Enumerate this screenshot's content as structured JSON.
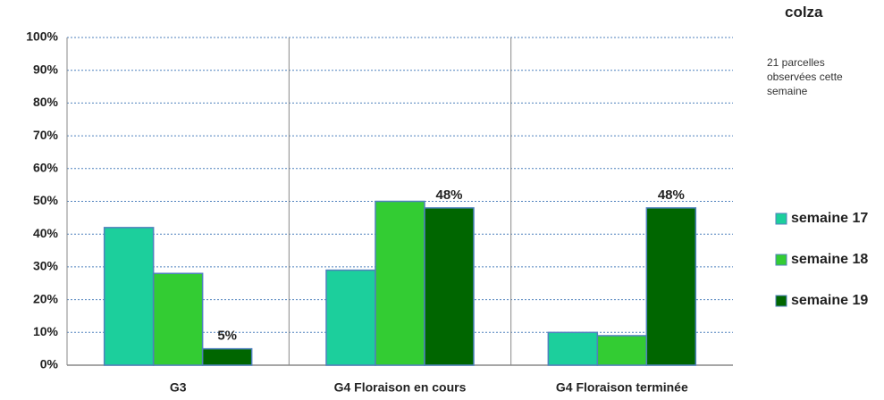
{
  "chart_data": {
    "type": "bar",
    "title": "colza",
    "subtitle": "21 parcelles observées cette semaine",
    "categories": [
      "G3",
      "G4 Floraison en cours",
      "G4 Floraison terminée"
    ],
    "series": [
      {
        "name": "semaine 17",
        "color": "#1ccf9c",
        "values": [
          42,
          29,
          10
        ]
      },
      {
        "name": "semaine 18",
        "color": "#33cc33",
        "values": [
          28,
          50,
          9
        ]
      },
      {
        "name": "semaine 19",
        "color": "#006600",
        "values": [
          5,
          48,
          48
        ],
        "value_labels": [
          "5%",
          "48%",
          "48%"
        ]
      }
    ],
    "ylim": [
      0,
      100
    ],
    "yticks": [
      {
        "value": 0,
        "label": "0%"
      },
      {
        "value": 10,
        "label": "10%"
      },
      {
        "value": 20,
        "label": "20%"
      },
      {
        "value": 30,
        "label": "30%"
      },
      {
        "value": 40,
        "label": "40%"
      },
      {
        "value": 50,
        "label": "50%"
      },
      {
        "value": 60,
        "label": "60%"
      },
      {
        "value": 70,
        "label": "70%"
      },
      {
        "value": 80,
        "label": "80%"
      },
      {
        "value": 90,
        "label": "90%"
      },
      {
        "value": 100,
        "label": "100%"
      }
    ],
    "grid": true,
    "legend": "right"
  }
}
